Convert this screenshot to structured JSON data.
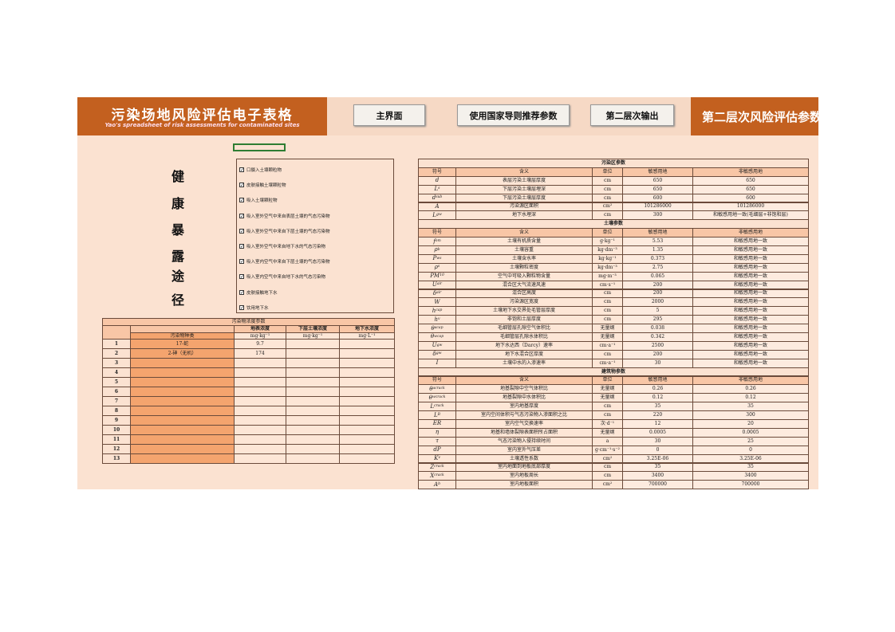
{
  "header": {
    "title": "污染场地风险评估电子表格",
    "subtitle": "Yao's spreadsheet of risk assessments for contaminated sites",
    "buttons": [
      "主界面",
      "使用国家导则推荐参数",
      "第二层次输出"
    ],
    "page_title": "第二层次风险评估参数"
  },
  "exposure_title": [
    "健",
    "康",
    "暴",
    "露",
    "途",
    "径"
  ],
  "pathways": [
    "口摄入土壤颗粒物",
    "皮肤接触土壤颗粒物",
    "吸入土壤颗粒物",
    "吸入室外空气中来自表层土壤的气态污染物",
    "吸入室外空气中来自下层土壤的气态污染物",
    "吸入室外空气中来自地下水的气态污染物",
    "吸入室内空气中来自下层土壤的气态污染物",
    "吸入室内空气中来自地下水的气态污染物",
    "皮肤接触地下水",
    "饮用地下水"
  ],
  "pollutant_table": {
    "title": "污染物浓度参数",
    "name_header": "污染物种类",
    "headers": [
      "地表浓度",
      "下层土壤浓度",
      "地下水浓度"
    ],
    "units": [
      "mg·kg⁻¹",
      "mg·kg⁻¹",
      "mg·L⁻¹"
    ],
    "rows": [
      {
        "no": 1,
        "name": "17-蛇",
        "surface": 9.7
      },
      {
        "no": 2,
        "name": "2-砷（无机）",
        "surface": 174
      },
      {
        "no": 3
      },
      {
        "no": 4
      },
      {
        "no": 5
      },
      {
        "no": 6
      },
      {
        "no": 7
      },
      {
        "no": 8
      },
      {
        "no": 9
      },
      {
        "no": 10
      },
      {
        "no": 11
      },
      {
        "no": 12
      },
      {
        "no": 13
      }
    ]
  },
  "param_table": {
    "columns": [
      "符号",
      "含义",
      "单位",
      "敏感用地",
      "非敏感用地"
    ],
    "sections": [
      {
        "title": "污染区参数",
        "rows": [
          {
            "sym": "d",
            "mean": "表层污染土壤层厚度",
            "unit": "cm",
            "v1": 650,
            "v2": 650
          },
          {
            "sym": "L",
            "sub": "s",
            "mean": "下层污染土壤层埋深",
            "unit": "cm",
            "v1": 650,
            "v2": 650
          },
          {
            "sym": "d",
            "sub": "sub",
            "mean": "下层污染土壤层厚度",
            "unit": "cm",
            "v1": 600,
            "v2": 600
          },
          {
            "sym": "A",
            "mean": "污染源区面积",
            "unit": "cm²",
            "v1": 101286000,
            "v2": 101286000
          },
          {
            "sym": "L",
            "sub": "gw",
            "mean": "地下水埋深",
            "unit": "cm",
            "v1": 300,
            "v2": "和敏感用地一致(毛细层+非饱和层)"
          }
        ]
      },
      {
        "title": "土壤参数",
        "rows": [
          {
            "sym": "f",
            "sub": "om",
            "mean": "土壤有机质含量",
            "unit": "g·kg⁻¹",
            "v1": 5.53,
            "v2": "和敏感用地一致"
          },
          {
            "sym": "ρ",
            "sub": "b",
            "mean": "土壤容重",
            "unit": "kg·dm⁻³",
            "v1": 1.35,
            "v2": "和敏感用地一致"
          },
          {
            "sym": "P",
            "sub": "ws",
            "mean": "土壤含水率",
            "unit": "kg·kg⁻¹",
            "v1": 0.373,
            "v2": "和敏感用地一致"
          },
          {
            "sym": "ρ",
            "sub": "s",
            "mean": "土壤颗粒密度",
            "unit": "kg·dm⁻³",
            "v1": 2.75,
            "v2": "和敏感用地一致"
          },
          {
            "sym": "PM",
            "sub": "10",
            "mean": "空气中可吸入颗粒物含量",
            "unit": "mg·m⁻³",
            "v1": 0.065,
            "v2": "和敏感用地一致"
          },
          {
            "sym": "U",
            "sub": "air",
            "mean": "混合区大气流速风速",
            "unit": "cm·s⁻¹",
            "v1": 200,
            "v2": "和敏感用地一致"
          },
          {
            "sym": "δ",
            "sub": "air",
            "mean": "混合区高度",
            "unit": "cm",
            "v1": 200,
            "v2": "和敏感用地一致"
          },
          {
            "sym": "W",
            "mean": "污染源区宽度",
            "unit": "cm",
            "v1": 2000,
            "v2": "和敏感用地一致"
          },
          {
            "sym": "h",
            "sub": "cap",
            "mean": "土壤地下水交界处毛管层厚度",
            "unit": "cm",
            "v1": 5,
            "v2": "和敏感用地一致"
          },
          {
            "sym": "h",
            "sub": "v",
            "mean": "非饱和土层厚度",
            "unit": "cm",
            "v1": 295,
            "v2": "和敏感用地一致"
          },
          {
            "sym": "θ",
            "sub": "acap",
            "mean": "毛细管层孔隙空气体积比",
            "unit": "无量纲",
            "v1": 0.038,
            "v2": "和敏感用地一致"
          },
          {
            "sym": "θ",
            "sub": "wcap",
            "mean": "毛细管层孔隙水体积比",
            "unit": "无量纲",
            "v1": 0.342,
            "v2": "和敏感用地一致"
          },
          {
            "sym": "U",
            "sub": "gw",
            "mean": "地下水达西（Darcy）速率",
            "unit": "cm·a⁻¹",
            "v1": 2500,
            "v2": "和敏感用地一致"
          },
          {
            "sym": "δ",
            "sub": "gw",
            "mean": "地下水混合区厚度",
            "unit": "cm",
            "v1": 200,
            "v2": "和敏感用地一致"
          },
          {
            "sym": "I",
            "mean": "土壤中水的入渗速率",
            "unit": "cm·a⁻¹",
            "v1": 30,
            "v2": "和敏感用地一致"
          }
        ]
      },
      {
        "title": "建筑物参数",
        "rows": [
          {
            "sym": "θ",
            "sub": "acrack",
            "mean": "地基裂隙中空气体积比",
            "unit": "无量纲",
            "v1": 0.26,
            "v2": 0.26
          },
          {
            "sym": "θ",
            "sub": "wcrack",
            "mean": "地基裂隙中水体积比",
            "unit": "无量纲",
            "v1": 0.12,
            "v2": 0.12
          },
          {
            "sym": "L",
            "sub": "crack",
            "mean": "室内地基厚度",
            "unit": "cm",
            "v1": 35,
            "v2": 35
          },
          {
            "sym": "L",
            "sub": "B",
            "mean": "室内空间体积与气态污染物入渗面积之比",
            "unit": "cm",
            "v1": 220,
            "v2": 300
          },
          {
            "sym": "ER",
            "mean": "室内空气交换速率",
            "unit": "次·d⁻¹",
            "v1": 12,
            "v2": 20
          },
          {
            "sym": "η",
            "mean": "地基和墙体裂隙表面积所占面积",
            "unit": "无量纲",
            "v1": 0.0005,
            "v2": 0.0005
          },
          {
            "sym": "τ",
            "mean": "气态污染物入侵持续时间",
            "unit": "a",
            "v1": 30,
            "v2": 25
          },
          {
            "sym": "dP",
            "mean": "室内室外气压差",
            "unit": "g·cm⁻¹·s⁻²",
            "v1": 0,
            "v2": 0
          },
          {
            "sym": "K",
            "sub": "v",
            "mean": "土壤透性系数",
            "unit": "cm²",
            "v1": "3.25E-06",
            "v2": "3.25E-06"
          },
          {
            "sym": "Z",
            "sub": "crack",
            "mean": "室内地面到地板底部厚度",
            "unit": "cm",
            "v1": 35,
            "v2": 35
          },
          {
            "sym": "X",
            "sub": "crack",
            "mean": "室内地板周长",
            "unit": "cm",
            "v1": 3400,
            "v2": 3400
          },
          {
            "sym": "A",
            "sub": "b",
            "mean": "室内地板面积",
            "unit": "cm²",
            "v1": 700000,
            "v2": 700000
          }
        ]
      }
    ]
  }
}
